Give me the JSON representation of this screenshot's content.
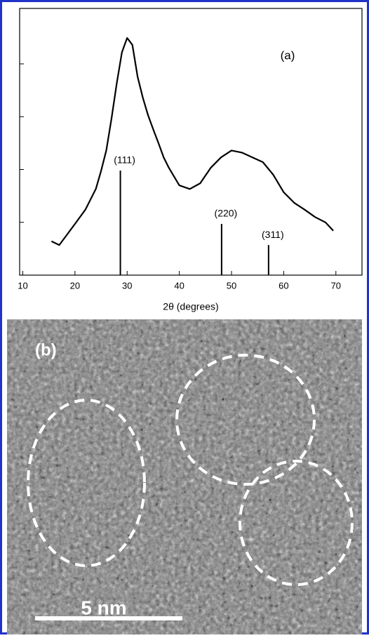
{
  "chart_data": {
    "type": "line",
    "annotation": "(a)",
    "xlabel": "2θ (degrees)",
    "x": [
      15.5,
      17,
      20,
      22,
      24,
      25,
      26,
      27,
      28,
      29,
      30,
      31,
      32,
      33,
      34,
      35,
      36,
      37,
      38,
      40,
      42,
      44,
      46,
      48,
      50,
      52,
      54,
      56,
      58,
      60,
      62,
      64,
      66,
      68,
      69.5
    ],
    "series": [
      {
        "color": "#000000",
        "values": [
          0.64,
          0.57,
          0.97,
          1.24,
          1.63,
          1.97,
          2.36,
          2.96,
          3.63,
          4.22,
          4.49,
          4.36,
          3.76,
          3.36,
          3.03,
          2.76,
          2.5,
          2.23,
          2.03,
          1.7,
          1.63,
          1.74,
          2.03,
          2.23,
          2.36,
          2.32,
          2.23,
          2.14,
          1.9,
          1.57,
          1.37,
          1.24,
          1.1,
          1.0,
          0.84
        ]
      }
    ],
    "reference_peaks": {
      "x": [
        28.7,
        48.1,
        57.1
      ],
      "values": [
        1.98,
        0.97,
        0.57
      ],
      "labels": [
        "(111)",
        "(220)",
        "(311)"
      ],
      "color": "#000000"
    },
    "xlim": [
      9.4,
      75
    ],
    "xticks": [
      10,
      20,
      30,
      40,
      50,
      60,
      70
    ],
    "ylim": [
      0,
      5.05
    ],
    "yticks": [
      1,
      2,
      3,
      4
    ],
    "ytick_labels": false
  },
  "tem_panel": {
    "label": "(b)",
    "scale_bar": "5 nm"
  }
}
